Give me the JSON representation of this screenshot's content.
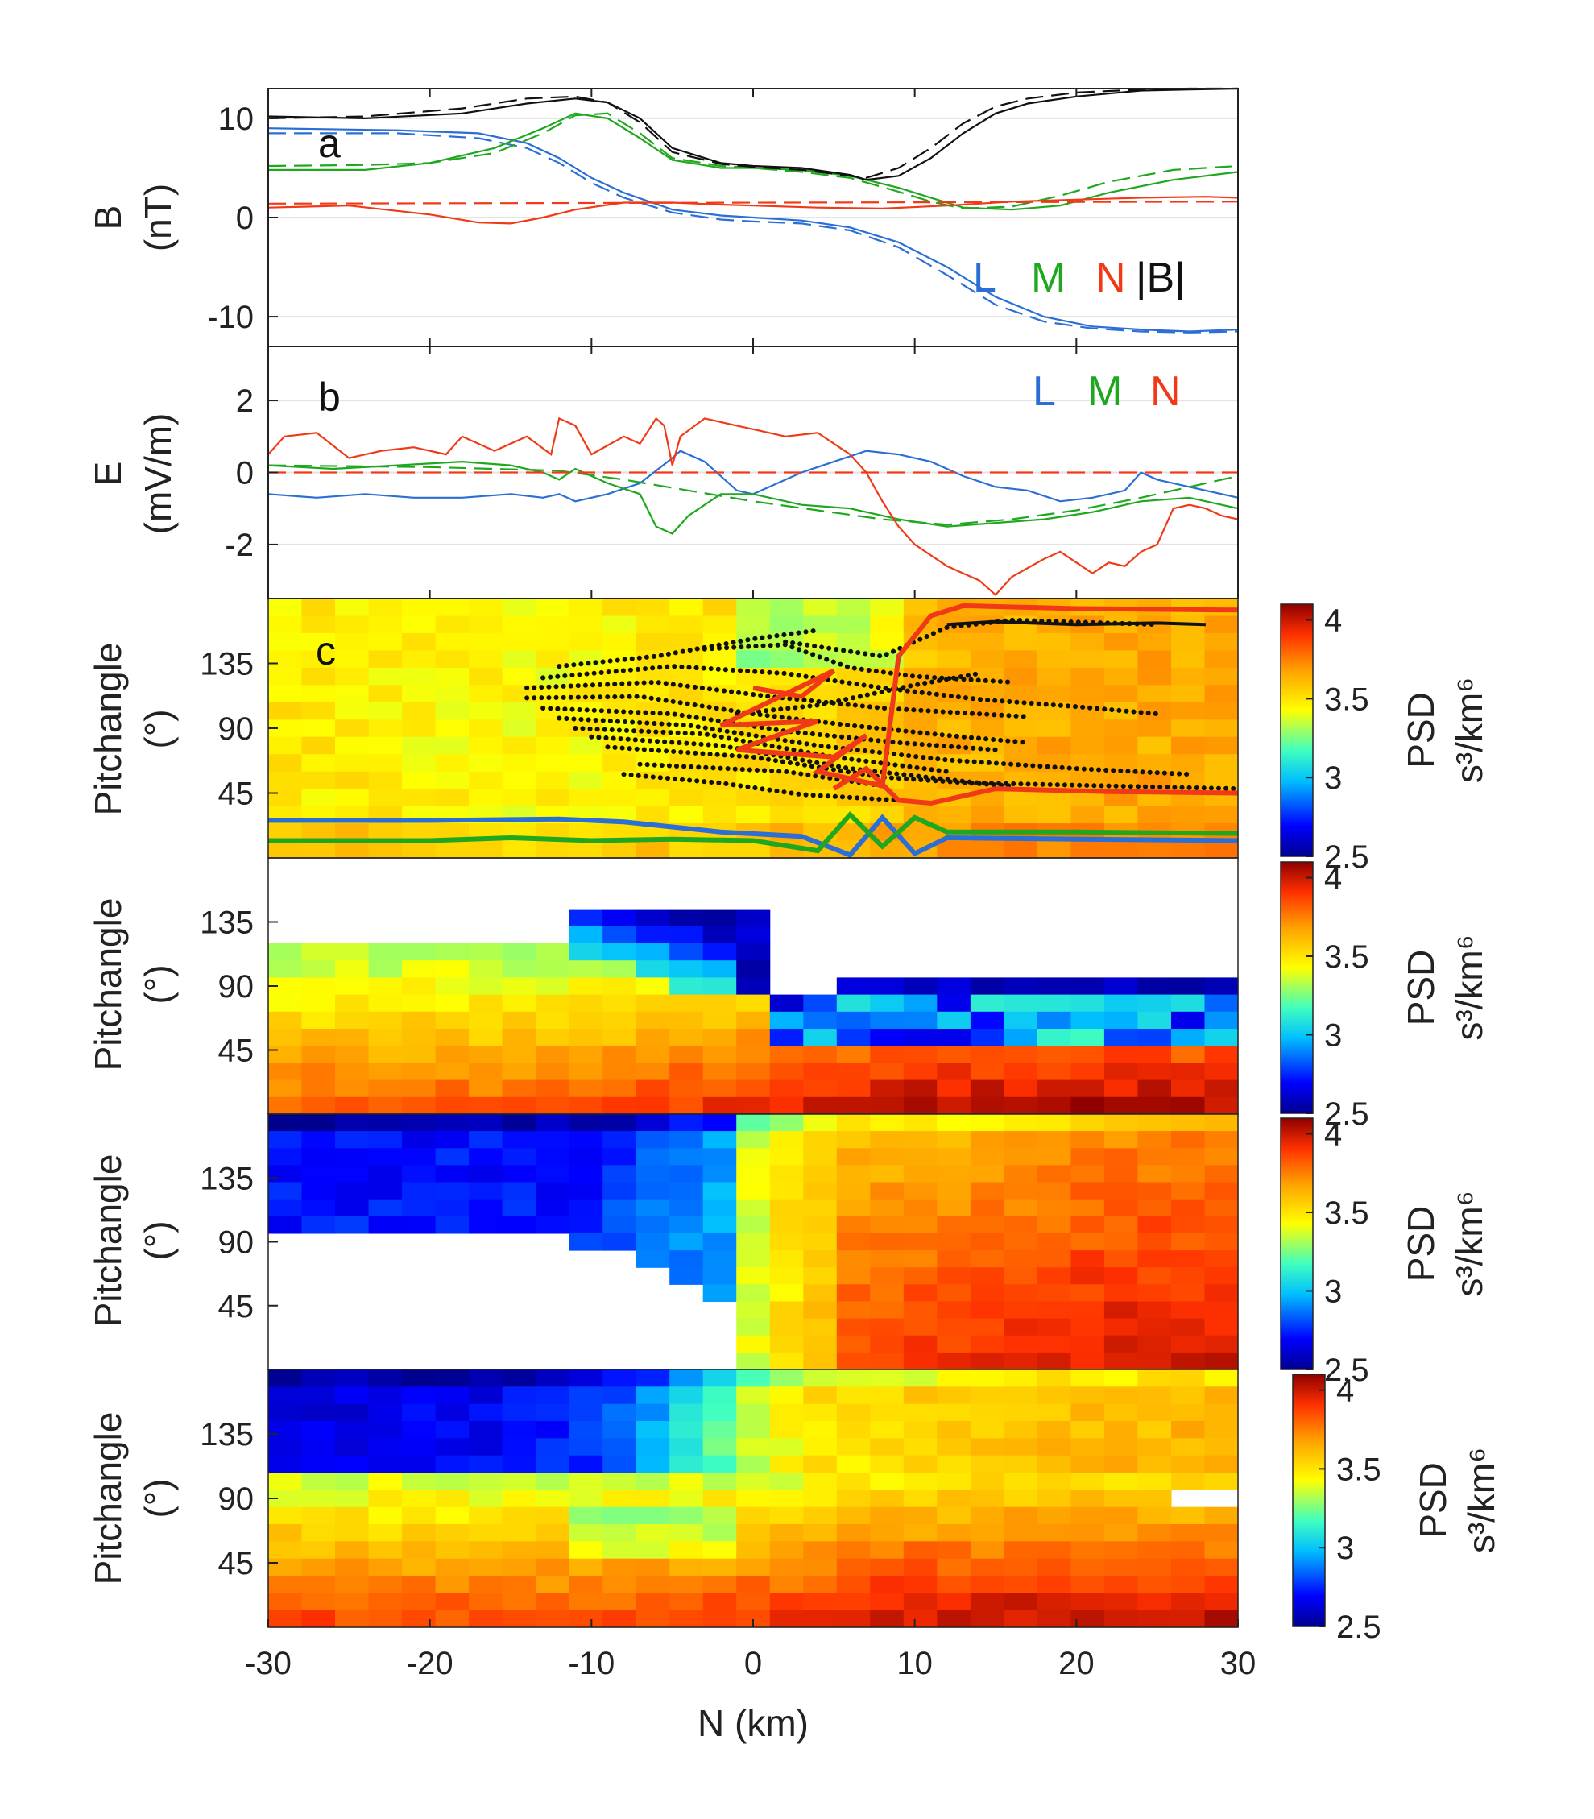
{
  "colors": {
    "L": "#2b6fd6",
    "M": "#1fa81f",
    "N": "#f03a17",
    "B": "#111111",
    "colormap": [
      "#00008f",
      "#0000ff",
      "#00bfff",
      "#40ffbf",
      "#ffff00",
      "#ffa000",
      "#ff3000",
      "#8f0000"
    ]
  },
  "chart_data": [
    {
      "type": "line",
      "panel_label": "a",
      "ylabel_line1": "B",
      "ylabel_line2": "(nT)",
      "xlim": [
        -30,
        30
      ],
      "ylim": [
        -13,
        13
      ],
      "yticks": [
        "10",
        "0",
        "-10"
      ],
      "legend": [
        "L",
        "M",
        "N",
        "|B|"
      ],
      "legend_placement": "bottom-right",
      "series": [
        {
          "name": "L",
          "style": "solid",
          "x": [
            -30,
            -22,
            -17,
            -14,
            -12,
            -10,
            -8,
            -5,
            -2,
            0,
            3,
            6,
            9,
            12,
            15,
            18,
            21,
            24,
            27,
            30
          ],
          "y": [
            9,
            8.8,
            8.5,
            7.5,
            6,
            4,
            2.5,
            0.8,
            0.2,
            0,
            -0.3,
            -1,
            -2.5,
            -5,
            -8,
            -10,
            -11,
            -11.3,
            -11.5,
            -11.3
          ]
        },
        {
          "name": "L",
          "style": "dashed",
          "x": [
            -30,
            -22,
            -17,
            -14,
            -12,
            -10,
            -8,
            -5,
            -2,
            0,
            3,
            6,
            9,
            12,
            15,
            18,
            21,
            24,
            27,
            30
          ],
          "y": [
            8.5,
            8.5,
            8,
            7,
            5.5,
            3.5,
            2,
            0.5,
            -0.2,
            -0.4,
            -0.6,
            -1.3,
            -3,
            -5.8,
            -8.8,
            -10.5,
            -11.2,
            -11.5,
            -11.6,
            -11.5
          ]
        },
        {
          "name": "M",
          "style": "solid",
          "x": [
            -30,
            -24,
            -20,
            -16,
            -13,
            -11,
            -9,
            -7,
            -5,
            -2,
            0,
            3,
            6,
            9,
            11,
            13,
            16,
            19,
            22,
            26,
            30
          ],
          "y": [
            4.8,
            4.8,
            5.5,
            7,
            9,
            10.5,
            10,
            8,
            5.8,
            5,
            5,
            4.8,
            4.2,
            3,
            2,
            1,
            0.8,
            1.2,
            2.5,
            3.8,
            4.6
          ]
        },
        {
          "name": "M",
          "style": "dashed",
          "x": [
            -30,
            -24,
            -20,
            -16,
            -13,
            -11,
            -9,
            -7,
            -5,
            -2,
            0,
            3,
            6,
            9,
            11,
            13,
            16,
            19,
            22,
            26,
            30
          ],
          "y": [
            5.2,
            5.3,
            5.5,
            6.5,
            8.5,
            10.3,
            10.5,
            8.5,
            6,
            5.2,
            5,
            4.6,
            4,
            2.6,
            1.6,
            0.9,
            1.1,
            2.2,
            3.6,
            4.8,
            5.2
          ]
        },
        {
          "name": "N",
          "style": "solid",
          "x": [
            -30,
            -25,
            -20,
            -17,
            -15,
            -13,
            -11,
            -8,
            -5,
            -2,
            0,
            4,
            8,
            12,
            16,
            20,
            24,
            28,
            30
          ],
          "y": [
            1,
            1.2,
            0.3,
            -0.5,
            -0.6,
            0,
            0.8,
            1.5,
            1.5,
            1.3,
            1.2,
            1,
            0.9,
            1.2,
            1.6,
            1.8,
            2,
            2.1,
            2
          ]
        },
        {
          "name": "N",
          "style": "dashed",
          "x": [
            -30,
            30
          ],
          "y": [
            1.4,
            1.6
          ]
        },
        {
          "name": "|B|",
          "style": "solid",
          "x": [
            -30,
            -24,
            -18,
            -14,
            -11,
            -9,
            -7,
            -5,
            -2,
            0,
            3,
            6,
            7,
            9,
            11,
            13,
            15,
            17,
            20,
            24,
            27,
            30
          ],
          "y": [
            10.2,
            10,
            10.5,
            11.5,
            12,
            11.6,
            10,
            7,
            5.5,
            5.2,
            5,
            4.3,
            3.8,
            4.2,
            6,
            8.5,
            10.5,
            11.5,
            12.2,
            12.8,
            12.9,
            13
          ]
        },
        {
          "name": "|B|",
          "style": "dashed",
          "x": [
            -30,
            -24,
            -18,
            -14,
            -11,
            -9,
            -7,
            -5,
            -2,
            0,
            3,
            6,
            7,
            9,
            11,
            13,
            15,
            17,
            20,
            24,
            27,
            30
          ],
          "y": [
            10,
            10.2,
            11,
            12,
            12.2,
            11.6,
            9.6,
            6.6,
            5.4,
            5.1,
            4.8,
            4.2,
            4,
            5,
            7,
            9.5,
            11.2,
            12,
            12.6,
            12.9,
            13,
            13
          ]
        }
      ]
    },
    {
      "type": "line",
      "panel_label": "b",
      "ylabel_line1": "E",
      "ylabel_line2": "(mV/m)",
      "xlim": [
        -30,
        30
      ],
      "ylim": [
        -3.5,
        3.5
      ],
      "yticks": [
        "2",
        "0",
        "-2"
      ],
      "legend": [
        "L",
        "M",
        "N"
      ],
      "legend_placement": "top-right",
      "series": [
        {
          "name": "L",
          "style": "solid",
          "x": [
            -30,
            -27,
            -24,
            -21,
            -18,
            -15,
            -13,
            -12,
            -11,
            -9,
            -7,
            -5,
            -4.5,
            -3,
            -1,
            0,
            1,
            3,
            5,
            7,
            9,
            11,
            13,
            15,
            17,
            19,
            21,
            23,
            24,
            25,
            27,
            30
          ],
          "y": [
            -0.6,
            -0.7,
            -0.6,
            -0.7,
            -0.7,
            -0.6,
            -0.7,
            -0.6,
            -0.8,
            -0.6,
            -0.3,
            0.4,
            0.6,
            0.3,
            -0.5,
            -0.6,
            -0.4,
            0,
            0.3,
            0.6,
            0.5,
            0.3,
            -0.1,
            -0.4,
            -0.5,
            -0.8,
            -0.7,
            -0.5,
            0,
            -0.2,
            -0.4,
            -0.7
          ]
        },
        {
          "name": "M",
          "style": "solid",
          "x": [
            -30,
            -26,
            -22,
            -18,
            -15,
            -13,
            -12,
            -11,
            -9,
            -7,
            -6,
            -5,
            -4,
            -2,
            0,
            3,
            6,
            9,
            12,
            15,
            18,
            21,
            24,
            27,
            30
          ],
          "y": [
            0.2,
            0.1,
            0.2,
            0.3,
            0.2,
            0,
            -0.2,
            0.1,
            -0.3,
            -0.6,
            -1.5,
            -1.7,
            -1.2,
            -0.6,
            -0.6,
            -0.9,
            -1,
            -1.3,
            -1.5,
            -1.4,
            -1.3,
            -1.1,
            -0.8,
            -0.7,
            -1
          ]
        },
        {
          "name": "M",
          "style": "dashed",
          "x": [
            -30,
            -20,
            -12,
            -8,
            -4,
            0,
            4,
            8,
            12,
            16,
            20,
            24,
            28,
            30
          ],
          "y": [
            0.2,
            0.15,
            0.05,
            -0.2,
            -0.5,
            -0.8,
            -1.05,
            -1.3,
            -1.45,
            -1.3,
            -1.05,
            -0.7,
            -0.3,
            -0.1
          ]
        },
        {
          "name": "N",
          "style": "solid",
          "x": [
            -30,
            -29,
            -27,
            -25,
            -23,
            -21,
            -19,
            -18,
            -16,
            -14,
            -12.5,
            -12,
            -11,
            -10,
            -8,
            -7,
            -6,
            -5.5,
            -5,
            -4.5,
            -3,
            -2,
            -1,
            0,
            2,
            4,
            5,
            6,
            7,
            8,
            9,
            10,
            11,
            12,
            13,
            14,
            15,
            16,
            18,
            19,
            20,
            21,
            22,
            23,
            24,
            25,
            26,
            27,
            28,
            29,
            30
          ],
          "y": [
            0.5,
            1,
            1.1,
            0.4,
            0.6,
            0.7,
            0.5,
            1,
            0.6,
            1,
            0.5,
            1.5,
            1.3,
            0.5,
            1,
            0.8,
            1.5,
            1.3,
            0.2,
            1,
            1.5,
            1.4,
            1.3,
            1.2,
            1,
            1.1,
            0.8,
            0.5,
            0,
            -0.8,
            -1.5,
            -2,
            -2.3,
            -2.6,
            -2.8,
            -3,
            -3.4,
            -2.9,
            -2.4,
            -2.2,
            -2.5,
            -2.8,
            -2.5,
            -2.6,
            -2.2,
            -2,
            -1,
            -0.9,
            -1,
            -1.2,
            -1.3
          ]
        },
        {
          "name": "N",
          "style": "dashed",
          "x": [
            -30,
            30
          ],
          "y": [
            0,
            0
          ]
        }
      ]
    },
    {
      "type": "heatmap",
      "panel_label": "c",
      "ylabel_line1": "Pitchangle",
      "ylabel_line2": "(°)",
      "xlim": [
        -30,
        30
      ],
      "ylim": [
        0,
        180
      ],
      "yticks": [
        "135",
        "90",
        "45"
      ],
      "colorbar": {
        "label_line1": "PSD",
        "label_line2": "s³/km⁶",
        "range": [
          2.5,
          4.1
        ],
        "ticks": [
          "4",
          "3.5",
          "3",
          "2.5"
        ]
      },
      "overlays": {
        "orbits_black_dotted": 14,
        "lines": [
          "L",
          "M",
          "N",
          "|B|"
        ]
      }
    },
    {
      "type": "heatmap",
      "panel_label": "",
      "ylabel_line1": "Pitchangle",
      "ylabel_line2": "(°)",
      "xlim": [
        -30,
        30
      ],
      "ylim": [
        0,
        180
      ],
      "yticks": [
        "135",
        "90",
        "45"
      ],
      "colorbar": {
        "label_line1": "PSD",
        "label_line2": "s³/km⁶",
        "range": [
          2.5,
          4.1
        ],
        "ticks": [
          "4",
          "3.5",
          "3",
          "2.5"
        ]
      }
    },
    {
      "type": "heatmap",
      "panel_label": "",
      "ylabel_line1": "Pitchangle",
      "ylabel_line2": "(°)",
      "xlim": [
        -30,
        30
      ],
      "ylim": [
        0,
        180
      ],
      "yticks": [
        "135",
        "90",
        "45"
      ],
      "colorbar": {
        "label_line1": "PSD",
        "label_line2": "s³/km⁶",
        "range": [
          2.5,
          4.1
        ],
        "ticks": [
          "4",
          "3.5",
          "3",
          "2.5"
        ]
      }
    },
    {
      "type": "heatmap",
      "panel_label": "",
      "ylabel_line1": "Pitchangle",
      "ylabel_line2": "(°)",
      "xlim": [
        -30,
        30
      ],
      "ylim": [
        0,
        180
      ],
      "yticks": [
        "135",
        "90",
        "45"
      ],
      "xticks": [
        "-30",
        "-20",
        "-10",
        "0",
        "10",
        "20",
        "30"
      ],
      "xlabel": "N (km)",
      "colorbar": {
        "label_line1": "PSD",
        "label_line2": "s³/km⁶",
        "range": [
          2.5,
          4.1
        ],
        "ticks": [
          "4",
          "3.5",
          "3",
          "2.5"
        ]
      }
    }
  ]
}
